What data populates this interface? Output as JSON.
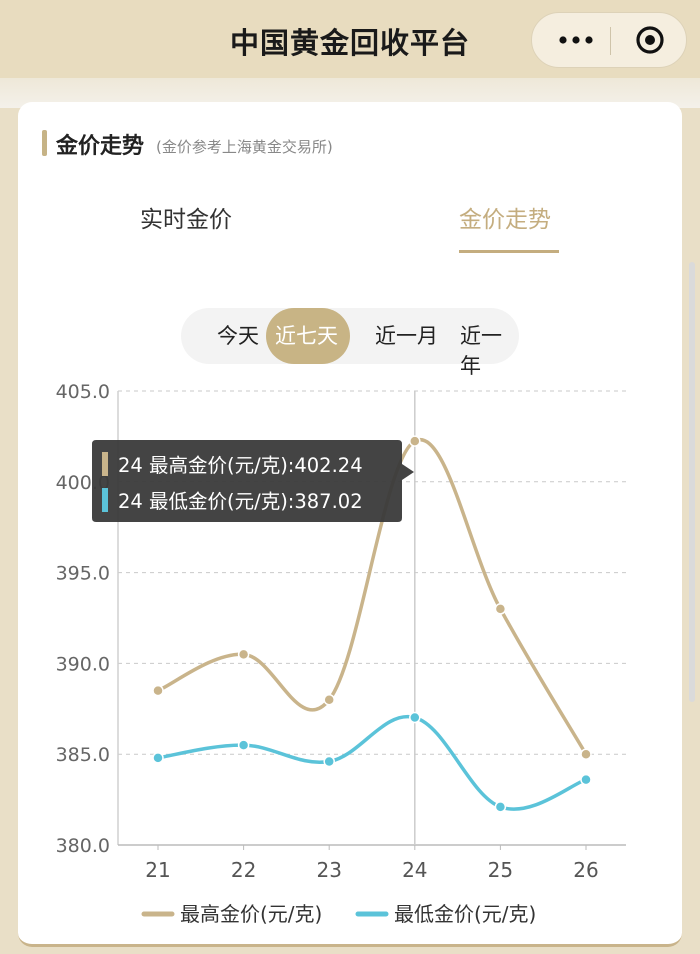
{
  "topbar": {
    "title": "中国黄金回收平台",
    "menu_icon": "more-dots-icon",
    "close_icon": "target-circle-icon"
  },
  "section": {
    "title": "金价走势",
    "subtitle": "(金价参考上海黄金交易所)"
  },
  "tabs": [
    {
      "label": "实时金价",
      "active": false
    },
    {
      "label": "金价走势",
      "active": true
    }
  ],
  "ranges": [
    {
      "label": "今天",
      "active": false
    },
    {
      "label": "近七天",
      "active": true
    },
    {
      "label": "近一月",
      "active": false
    },
    {
      "label": "近一年",
      "active": false
    }
  ],
  "colors": {
    "gold": "#c9b48b",
    "cyan": "#5bc3d9",
    "tooltip_bg": "#3a3a3a"
  },
  "tooltip": {
    "lines": [
      "24 最高金价(元/克):402.24",
      "24 最低金价(元/克):387.02"
    ]
  },
  "chart_data": {
    "type": "line",
    "x": [
      "21",
      "22",
      "23",
      "24",
      "25",
      "26"
    ],
    "ylim": [
      380,
      405
    ],
    "yticks": [
      "405.0",
      "400.0",
      "395.0",
      "390.0",
      "385.0",
      "380.0"
    ],
    "series": [
      {
        "name": "最高金价(元/克)",
        "color": "#c9b48b",
        "values": [
          388.5,
          390.5,
          388.0,
          402.24,
          393.0,
          385.0
        ]
      },
      {
        "name": "最低金价(元/克)",
        "color": "#5bc3d9",
        "values": [
          384.8,
          385.5,
          384.6,
          387.02,
          382.1,
          383.6
        ]
      }
    ],
    "grid": true,
    "legend": "bottom"
  }
}
